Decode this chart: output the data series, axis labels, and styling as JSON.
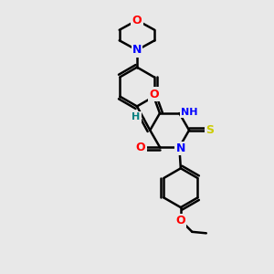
{
  "bg_color": "#e8e8e8",
  "bond_color": "#000000",
  "bond_width": 1.8,
  "atom_colors": {
    "O": "#ff0000",
    "N": "#0000ff",
    "S": "#cccc00",
    "H": "#008080",
    "C": "#000000"
  },
  "font_size": 9,
  "fig_size": [
    3.0,
    3.0
  ],
  "dpi": 100,
  "scale": 1.0
}
